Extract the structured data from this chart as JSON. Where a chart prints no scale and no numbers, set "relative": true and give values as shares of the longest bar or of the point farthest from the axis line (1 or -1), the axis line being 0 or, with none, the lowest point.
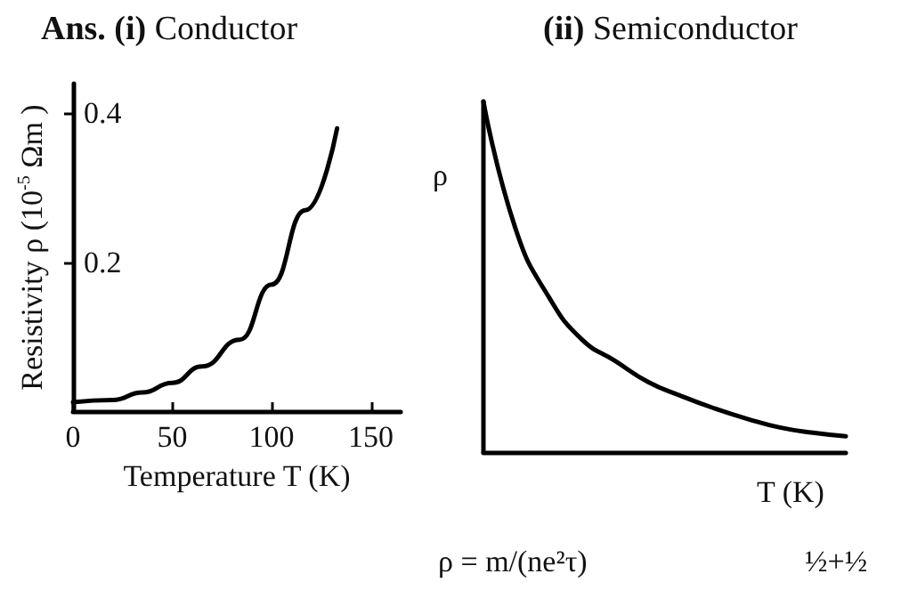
{
  "chart_data": [
    {
      "type": "line",
      "title": "Ans. (i) Conductor",
      "xlabel": "Temperature T (K)",
      "ylabel": "Resistivity ρ (10$^{-5}$ Ωm )",
      "x": [
        0,
        20,
        35,
        50,
        65,
        84,
        100,
        117,
        133
      ],
      "series": [
        {
          "color": "#000000",
          "values": [
            0.012,
            0.015,
            0.025,
            0.038,
            0.06,
            0.096,
            0.17,
            0.27,
            0.38
          ]
        }
      ],
      "xlim": [
        0,
        165
      ],
      "xticks": [
        0,
        50,
        100,
        150
      ],
      "ylim": [
        0,
        0.44
      ],
      "yticks": [
        0.2,
        0.4
      ],
      "grid": false,
      "marker": "none",
      "line_style": "solid"
    },
    {
      "type": "line",
      "title": "(ii) Semiconductor",
      "xlabel": "T (K)",
      "ylabel": "ρ",
      "relative": true,
      "categories": [
        null,
        null,
        null,
        null,
        null,
        null,
        null,
        null,
        null,
        null,
        null,
        null
      ],
      "series": [
        {
          "color": "#000000",
          "values": [
            1.0,
            0.63,
            0.44,
            0.32,
            0.26,
            0.2,
            0.16,
            0.125,
            0.095,
            0.07,
            0.055,
            0.045
          ]
        }
      ],
      "annotations": [
        "ρ = m/(ne²τ)",
        "½+½"
      ],
      "grid": false,
      "marker": "none",
      "line_style": "solid"
    }
  ]
}
